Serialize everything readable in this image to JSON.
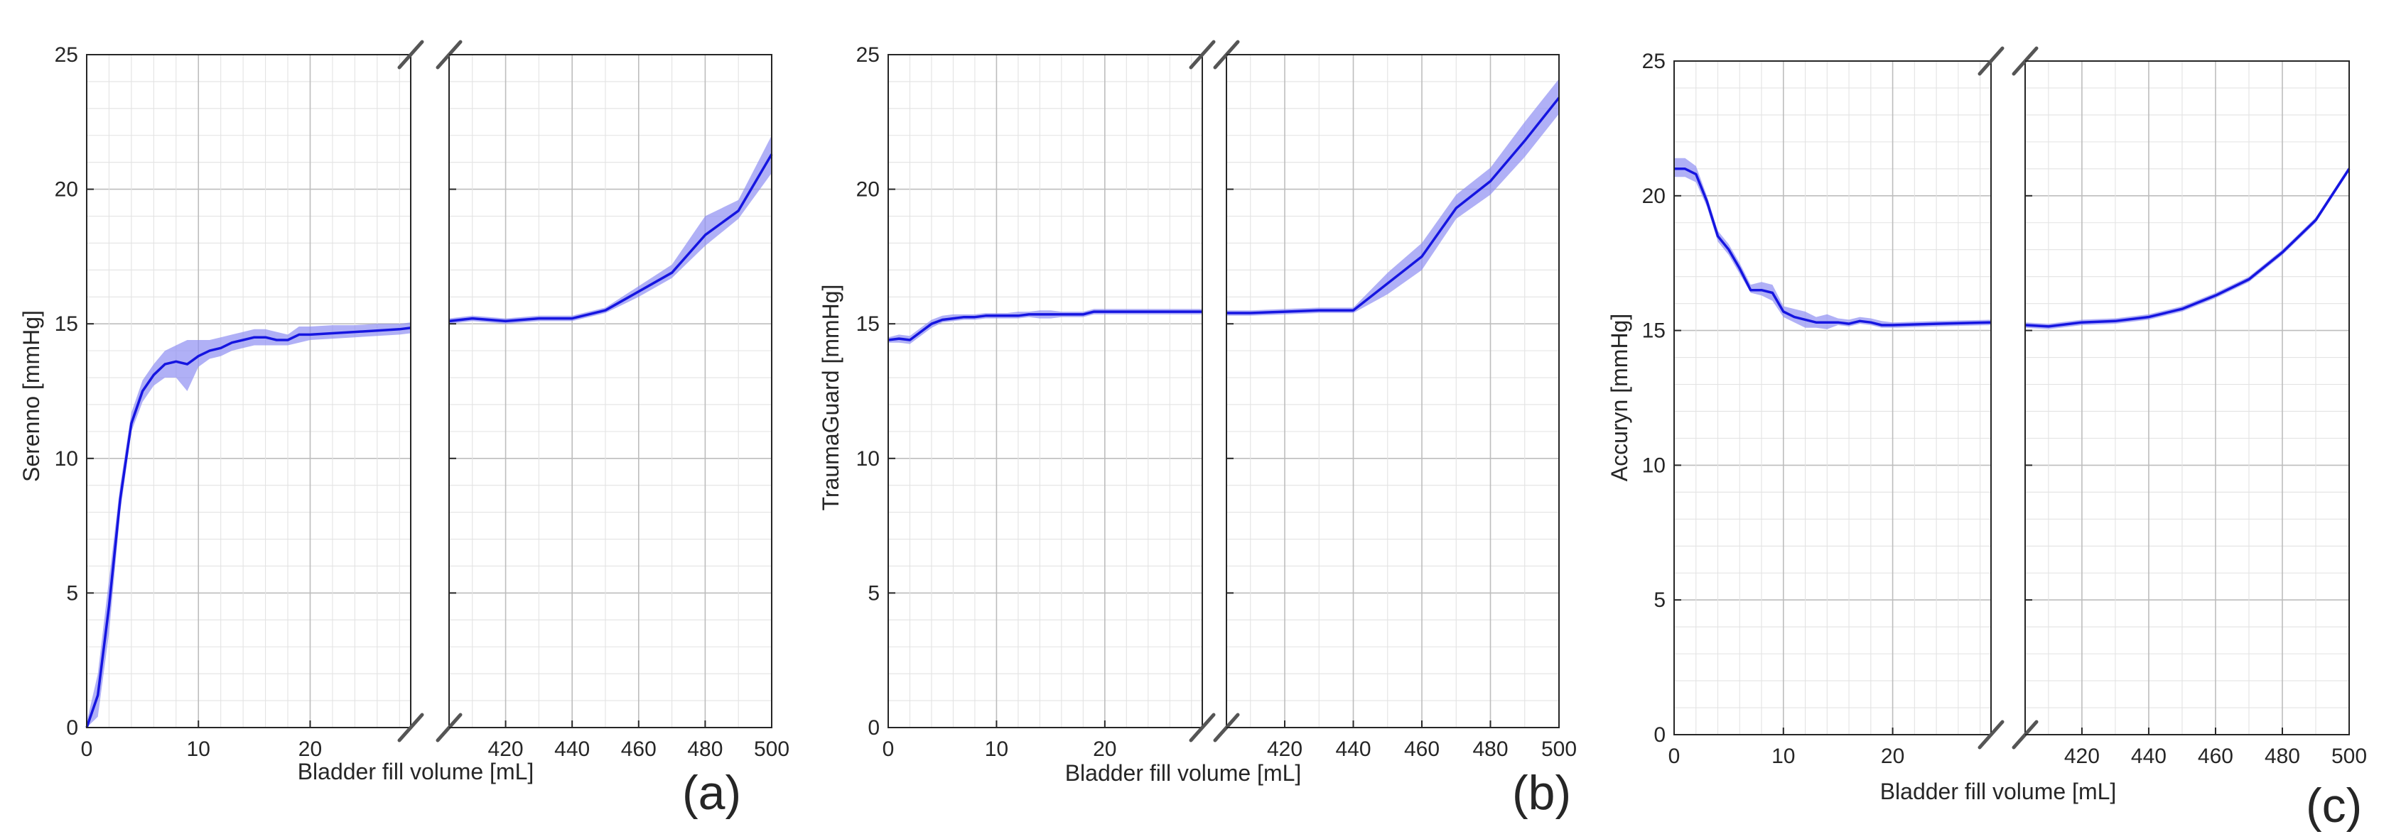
{
  "chart_data": [
    {
      "type": "line",
      "panel_label": "(a)",
      "xlabel": "Bladder fill volume [mL]",
      "ylabel": "Serenno [mmHg]",
      "ylim": [
        0,
        25
      ],
      "yticks": [
        "0",
        "5",
        "10",
        "15",
        "20",
        "25"
      ],
      "x_axis_broken": true,
      "x_segments": [
        {
          "xlim": [
            0,
            29
          ],
          "tick_values": [
            0,
            10,
            20
          ],
          "tick_labels": [
            "0",
            "10",
            "20"
          ]
        },
        {
          "xlim": [
            403,
            500
          ],
          "tick_values": [
            420,
            440,
            460,
            480,
            500
          ],
          "tick_labels": [
            "420",
            "440",
            "460",
            "480",
            "500"
          ]
        }
      ],
      "grid": true,
      "line_color": "#1515e0",
      "band_color": "#8f8ff2",
      "segments": [
        {
          "x": [
            0,
            1,
            2,
            3,
            4,
            5,
            6,
            7,
            8,
            9,
            10,
            11,
            12,
            13,
            14,
            15,
            16,
            17,
            18,
            19,
            20,
            22,
            24,
            26,
            28,
            29
          ],
          "y": [
            0,
            1.2,
            4.5,
            8.5,
            11.3,
            12.5,
            13.1,
            13.5,
            13.6,
            13.5,
            13.8,
            14.0,
            14.1,
            14.3,
            14.4,
            14.5,
            14.5,
            14.4,
            14.4,
            14.6,
            14.6,
            14.65,
            14.7,
            14.75,
            14.8,
            14.85
          ],
          "lower": [
            0,
            0.4,
            3.5,
            8.0,
            11.0,
            12.1,
            12.7,
            13.0,
            13.0,
            12.5,
            13.4,
            13.7,
            13.8,
            14.0,
            14.1,
            14.2,
            14.2,
            14.2,
            14.2,
            14.3,
            14.4,
            14.45,
            14.5,
            14.55,
            14.6,
            14.65
          ],
          "upper": [
            0.2,
            2.0,
            5.5,
            9.0,
            11.7,
            12.9,
            13.5,
            14.0,
            14.2,
            14.4,
            14.4,
            14.4,
            14.5,
            14.6,
            14.7,
            14.8,
            14.8,
            14.7,
            14.6,
            14.9,
            14.9,
            14.95,
            14.95,
            15.0,
            15.0,
            15.05
          ]
        },
        {
          "x": [
            403,
            410,
            420,
            430,
            440,
            450,
            460,
            470,
            480,
            490,
            500
          ],
          "y": [
            15.1,
            15.2,
            15.1,
            15.2,
            15.2,
            15.5,
            16.2,
            16.9,
            18.3,
            19.2,
            21.3
          ],
          "lower": [
            15.0,
            15.1,
            15.0,
            15.1,
            15.1,
            15.4,
            16.0,
            16.7,
            17.9,
            18.9,
            20.6
          ],
          "upper": [
            15.2,
            15.3,
            15.2,
            15.3,
            15.3,
            15.6,
            16.4,
            17.2,
            19.0,
            19.6,
            22.0
          ]
        }
      ]
    },
    {
      "type": "line",
      "panel_label": "(b)",
      "xlabel": "Bladder fill volume [mL]",
      "ylabel": "TraumaGuard [mmHg]",
      "ylim": [
        0,
        25
      ],
      "yticks": [
        "0",
        "5",
        "10",
        "15",
        "20",
        "25"
      ],
      "x_axis_broken": true,
      "x_segments": [
        {
          "xlim": [
            0,
            29
          ],
          "tick_values": [
            0,
            10,
            20
          ],
          "tick_labels": [
            "0",
            "10",
            "20"
          ]
        },
        {
          "xlim": [
            403,
            500
          ],
          "tick_values": [
            420,
            440,
            460,
            480,
            500
          ],
          "tick_labels": [
            "420",
            "440",
            "460",
            "480",
            "500"
          ]
        }
      ],
      "grid": true,
      "line_color": "#1515e0",
      "band_color": "#8f8ff2",
      "segments": [
        {
          "x": [
            0,
            1,
            2,
            3,
            4,
            5,
            6,
            7,
            8,
            9,
            10,
            11,
            12,
            13,
            14,
            15,
            16,
            17,
            18,
            19,
            20,
            24,
            29
          ],
          "y": [
            14.4,
            14.45,
            14.4,
            14.7,
            15.0,
            15.15,
            15.2,
            15.25,
            15.25,
            15.3,
            15.3,
            15.3,
            15.3,
            15.35,
            15.35,
            15.35,
            15.35,
            15.35,
            15.35,
            15.45,
            15.45,
            15.45,
            15.45
          ],
          "lower": [
            14.3,
            14.3,
            14.25,
            14.55,
            14.85,
            15.05,
            15.1,
            15.15,
            15.15,
            15.2,
            15.2,
            15.2,
            15.2,
            15.25,
            15.2,
            15.2,
            15.25,
            15.25,
            15.25,
            15.35,
            15.35,
            15.35,
            15.35
          ],
          "upper": [
            14.5,
            14.6,
            14.55,
            14.85,
            15.15,
            15.3,
            15.35,
            15.35,
            15.35,
            15.4,
            15.4,
            15.4,
            15.45,
            15.45,
            15.5,
            15.5,
            15.45,
            15.45,
            15.45,
            15.55,
            15.55,
            15.55,
            15.55
          ]
        },
        {
          "x": [
            403,
            410,
            420,
            430,
            440,
            450,
            460,
            470,
            480,
            490,
            500
          ],
          "y": [
            15.4,
            15.4,
            15.45,
            15.5,
            15.5,
            16.5,
            17.5,
            19.3,
            20.3,
            21.8,
            23.4
          ],
          "lower": [
            15.3,
            15.3,
            15.35,
            15.4,
            15.4,
            16.1,
            17.0,
            18.9,
            19.8,
            21.2,
            22.8
          ],
          "upper": [
            15.5,
            15.5,
            15.55,
            15.6,
            15.6,
            16.9,
            18.0,
            19.8,
            20.8,
            22.5,
            24.1
          ]
        }
      ]
    },
    {
      "type": "line",
      "panel_label": "(c)",
      "xlabel": "Bladder fill volume [mL]",
      "ylabel": "Accuryn [mmHg]",
      "ylim": [
        0,
        25
      ],
      "yticks": [
        "0",
        "5",
        "10",
        "15",
        "20",
        "25"
      ],
      "x_axis_broken": true,
      "x_segments": [
        {
          "xlim": [
            0,
            29
          ],
          "tick_values": [
            0,
            10,
            20
          ],
          "tick_labels": [
            "0",
            "10",
            "20"
          ]
        },
        {
          "xlim": [
            403,
            500
          ],
          "tick_values": [
            420,
            440,
            460,
            480,
            500
          ],
          "tick_labels": [
            "420",
            "440",
            "460",
            "480",
            "500"
          ]
        }
      ],
      "grid": true,
      "line_color": "#1515e0",
      "band_color": "#8f8ff2",
      "segments": [
        {
          "x": [
            0,
            1,
            2,
            3,
            4,
            5,
            6,
            7,
            8,
            9,
            10,
            11,
            12,
            13,
            14,
            15,
            16,
            17,
            18,
            19,
            20,
            24,
            29
          ],
          "y": [
            21.0,
            21.0,
            20.8,
            19.8,
            18.5,
            18.0,
            17.3,
            16.5,
            16.5,
            16.4,
            15.7,
            15.5,
            15.4,
            15.3,
            15.3,
            15.3,
            15.25,
            15.35,
            15.3,
            15.2,
            15.2,
            15.25,
            15.3
          ],
          "lower": [
            20.7,
            20.7,
            20.5,
            19.6,
            18.3,
            17.8,
            17.1,
            16.4,
            16.3,
            16.1,
            15.5,
            15.3,
            15.1,
            15.1,
            15.05,
            15.2,
            15.15,
            15.25,
            15.2,
            15.1,
            15.1,
            15.15,
            15.2
          ],
          "upper": [
            21.4,
            21.4,
            21.1,
            20.0,
            18.7,
            18.2,
            17.5,
            16.7,
            16.8,
            16.7,
            15.9,
            15.8,
            15.7,
            15.5,
            15.6,
            15.45,
            15.4,
            15.5,
            15.45,
            15.35,
            15.3,
            15.35,
            15.4
          ]
        },
        {
          "x": [
            403,
            410,
            420,
            430,
            440,
            450,
            460,
            470,
            480,
            490,
            500
          ],
          "y": [
            15.2,
            15.15,
            15.3,
            15.35,
            15.5,
            15.8,
            16.3,
            16.9,
            17.9,
            19.1,
            21.0
          ],
          "lower": [
            15.1,
            15.05,
            15.2,
            15.25,
            15.4,
            15.7,
            16.2,
            16.8,
            17.8,
            19.0,
            20.9
          ],
          "upper": [
            15.3,
            15.25,
            15.4,
            15.45,
            15.6,
            15.9,
            16.4,
            17.0,
            18.0,
            19.2,
            21.1
          ]
        }
      ]
    }
  ]
}
